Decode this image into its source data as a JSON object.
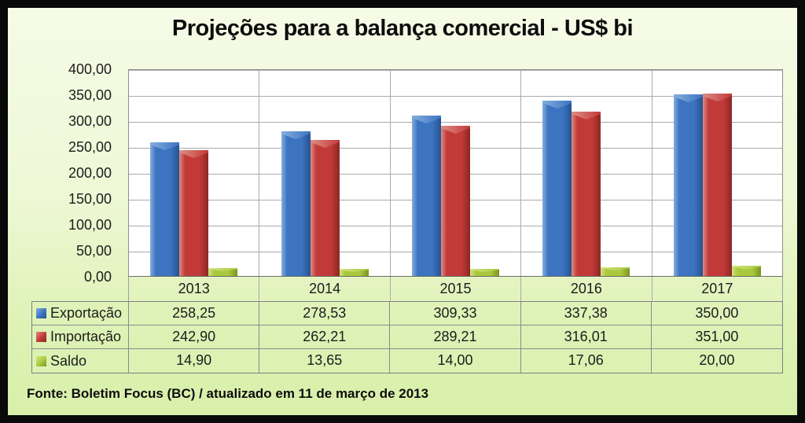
{
  "title": "Projeções para a balança comercial - US$ bi",
  "footer": "Fonte: Boletim Focus (BC) / atualizado em 11 de março de 2013",
  "colors": {
    "frame": "#0a0a0a",
    "page_bg_top": "#f6fbe6",
    "page_bg_bottom": "#d8f0aa",
    "plot_bg": "#ffffff",
    "gridline": "#ababab",
    "axis_line": "#6b6b6b",
    "table_border": "#8b8b8b",
    "text": "#1c1c1c"
  },
  "chart_data": {
    "type": "bar",
    "title": "Projeções para a balança comercial - US$ bi",
    "categories": [
      "2013",
      "2014",
      "2015",
      "2016",
      "2017"
    ],
    "series": [
      {
        "name": "Exportação",
        "slug": "exportacao",
        "color": "#3c74c1",
        "color_light": "#85aede",
        "color_dark": "#25538f",
        "values": [
          258.25,
          278.53,
          309.33,
          337.38,
          350.0
        ],
        "labels": [
          "258,25",
          "278,53",
          "309,33",
          "337,38",
          "350,00"
        ]
      },
      {
        "name": "Importação",
        "slug": "importacao",
        "color": "#c23a38",
        "color_light": "#dd8d85",
        "color_dark": "#8c2724",
        "values": [
          242.9,
          262.21,
          289.21,
          316.01,
          351.0
        ],
        "labels": [
          "242,90",
          "262,21",
          "289,21",
          "316,01",
          "351,00"
        ]
      },
      {
        "name": "Saldo",
        "slug": "saldo",
        "color": "#a9c93d",
        "color_light": "#d3e382",
        "color_dark": "#7a951f",
        "values": [
          14.9,
          13.65,
          14.0,
          17.06,
          20.0
        ],
        "labels": [
          "14,90",
          "13,65",
          "14,00",
          "17,06",
          "20,00"
        ]
      }
    ],
    "xlabel": "",
    "ylabel": "",
    "ylim": [
      0,
      400
    ],
    "ytick_step": 50,
    "ytick_labels": [
      "400,00",
      "350,00",
      "300,00",
      "250,00",
      "200,00",
      "150,00",
      "100,00",
      "50,00",
      "0,00"
    ],
    "grid": true,
    "legend_position": "table-left",
    "source": "Fonte: Boletim Focus (BC) / atualizado em 11 de março de 2013"
  }
}
